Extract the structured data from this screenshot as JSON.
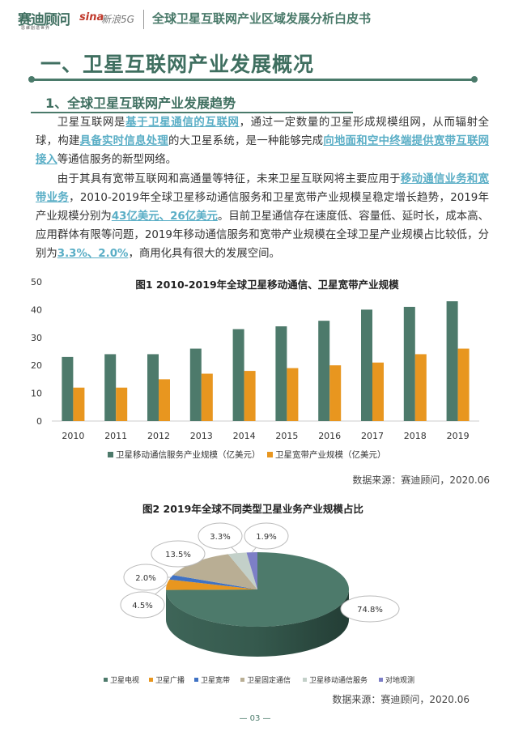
{
  "header": {
    "logo_cn": "赛迪顾问",
    "logo_sub": "思維創造世界",
    "sina_logo": "sina",
    "sina_5g": "新浪5G",
    "doc_title": "全球卫星互联网产业区域发展分析白皮书"
  },
  "section": {
    "h1": "一、卫星互联网产业发展概况",
    "h2": "1、全球卫星互联网产业发展趋势"
  },
  "paragraphs": [
    [
      {
        "t": "卫星互联网是"
      },
      {
        "t": "基于卫星通信的互联网",
        "hl": true
      },
      {
        "t": "，通过一定数量的卫星形成规模组网，从而辐射全球，构建"
      },
      {
        "t": "具备实时信息处理",
        "hl": true
      },
      {
        "t": "的大卫星系统，是一种能够完成"
      },
      {
        "t": "向地面和空中终端提供宽带互联网接入",
        "hl": true
      },
      {
        "t": "等通信服务的新型网络。"
      }
    ],
    [
      {
        "t": "由于其具有宽带互联网和高通量等特征，未来卫星互联网将主要应用于"
      },
      {
        "t": "移动通信业务和宽带业务",
        "hl": true
      },
      {
        "t": "，2010-2019年全球卫星移动通信服务和卫星宽带产业规模呈稳定增长趋势，2019年产业规模分别为"
      },
      {
        "t": "43亿美元、26亿美元",
        "hl": true
      },
      {
        "t": "。目前卫星通信存在速度低、容量低、延时长，成本高、应用群体有限等问题，2019年移动通信服务和宽带产业规模在全球卫星产业规模占比较低，分别为"
      },
      {
        "t": "3.3%、2.0%",
        "hl": true
      },
      {
        "t": "，商用化具有很大的发展空间。"
      }
    ]
  ],
  "colors": {
    "accent": "#4a7a6a",
    "highlight": "#5aaec6",
    "green": "#4d7a6b",
    "orange": "#e8961f"
  },
  "chart_data": [
    {
      "type": "bar",
      "title": "图1  2010-2019年全球卫星移动通信、卫星宽带产业规模",
      "categories": [
        "2010",
        "2011",
        "2012",
        "2013",
        "2014",
        "2015",
        "2016",
        "2017",
        "2018",
        "2019"
      ],
      "series": [
        {
          "name": "卫星移动通信服务产业规模（亿美元）",
          "color": "#4d7a6b",
          "values": [
            23,
            24,
            24,
            26,
            33,
            34,
            36,
            40,
            41,
            43
          ]
        },
        {
          "name": "卫星宽带产业规模（亿美元）",
          "color": "#e8961f",
          "values": [
            12,
            12,
            15,
            17,
            18,
            19,
            20,
            21,
            24,
            26
          ]
        }
      ],
      "ylim": [
        0,
        50
      ],
      "yticks": [
        "0",
        "10",
        "20",
        "30",
        "40",
        "50"
      ],
      "legend": "bottom",
      "source": "数据来源：赛迪顾问，2020.06"
    },
    {
      "type": "pie",
      "title": "图2  2019年全球不同类型卫星业务产业规模占比",
      "labels": [
        "卫星电视",
        "卫星广播",
        "卫星宽带",
        "卫星固定通信",
        "卫星移动通信服务",
        "对地观测"
      ],
      "values": [
        74.8,
        4.5,
        2.0,
        13.5,
        3.3,
        1.9
      ],
      "data_labels": [
        "74.8%",
        "4.5%",
        "2.0%",
        "13.5%",
        "3.3%",
        "1.9%"
      ],
      "colors": [
        "#4d7a6b",
        "#e8961f",
        "#3f72c4",
        "#b9ae94",
        "#c3d0c9",
        "#7d7fc7"
      ],
      "legend": "bottom",
      "source": "数据来源：赛迪顾问，2020.06"
    }
  ],
  "footer": {
    "page_number": "03"
  }
}
